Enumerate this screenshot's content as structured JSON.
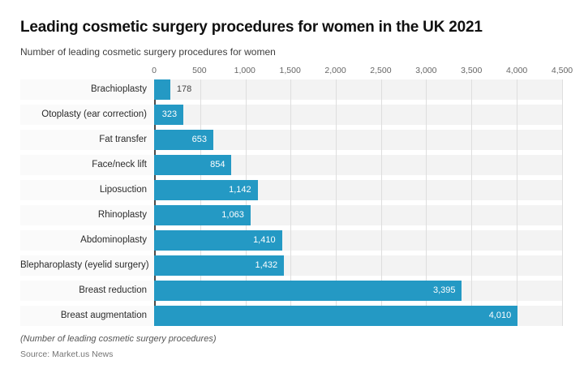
{
  "header": {
    "title": "Leading cosmetic surgery procedures for women in the UK 2021",
    "subtitle": "Number of leading cosmetic surgery procedures for women"
  },
  "footer": {
    "note": "(Number of leading cosmetic surgery procedures)",
    "source": "Source: Market.us News"
  },
  "colors": {
    "bar": "#2499c4",
    "band": "#f3f3f3",
    "gridline": "#dedede",
    "axis_line": "#4a4a4a",
    "value_label_inside": "#ffffff",
    "value_label_outside": "#444444"
  },
  "chart_data": {
    "type": "bar",
    "orientation": "horizontal",
    "title": "Leading cosmetic surgery procedures for women in the UK 2021",
    "subtitle": "Number of leading cosmetic surgery procedures for women",
    "categories": [
      "Brachioplasty",
      "Otoplasty (ear correction)",
      "Fat transfer",
      "Face/neck lift",
      "Liposuction",
      "Rhinoplasty",
      "Abdominoplasty",
      "Blepharoplasty (eyelid surgery)",
      "Breast reduction",
      "Breast augmentation"
    ],
    "values": [
      178,
      323,
      653,
      854,
      1142,
      1063,
      1410,
      1432,
      3395,
      4010
    ],
    "value_labels": [
      "178",
      "323",
      "653",
      "854",
      "1,142",
      "1,063",
      "1,410",
      "1,432",
      "3,395",
      "4,010"
    ],
    "xlim": [
      0,
      4500
    ],
    "xticks": [
      0,
      500,
      1000,
      1500,
      2000,
      2500,
      3000,
      3500,
      4000,
      4500
    ],
    "xtick_labels": [
      "0",
      "500",
      "1,000",
      "1,500",
      "2,000",
      "2,500",
      "3,000",
      "3,500",
      "4,000",
      "4,500"
    ],
    "grid": "vertical",
    "legend": "none",
    "xlabel": "",
    "ylabel": ""
  }
}
